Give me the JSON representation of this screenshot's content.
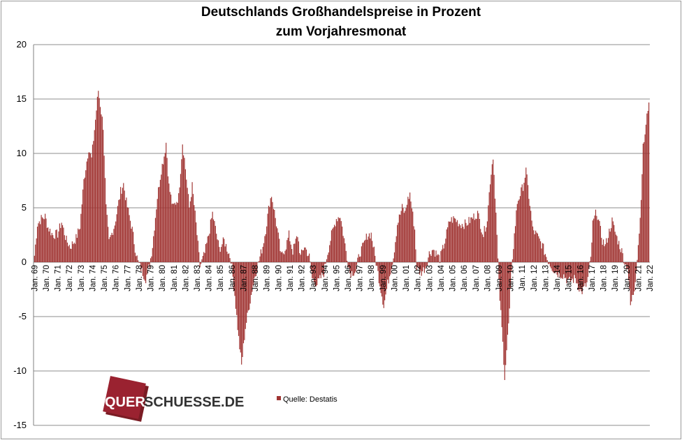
{
  "chart_data": {
    "type": "bar",
    "title_line1": "Deutschlands  Großhandelspreise  in Prozent",
    "title_line2": "zum Vorjahresmonat",
    "xlabel": "",
    "ylabel": "",
    "ylim": [
      -15,
      20
    ],
    "yticks": [
      "20",
      "15",
      "10",
      "5",
      "0",
      "-5",
      "-10",
      "-15"
    ],
    "grid": true,
    "series_color": "#a03432",
    "x_ticks": [
      "Jan. 69",
      "Jan. 70",
      "Jan. 71",
      "Jan. 72",
      "Jan. 73",
      "Jan. 74",
      "Jan. 75",
      "Jan. 76",
      "Jan. 77",
      "Jan. 78",
      "Jan. 79",
      "Jan. 80",
      "Jan. 81",
      "Jan. 82",
      "Jan. 83",
      "Jan. 84",
      "Jan. 85",
      "Jan. 86",
      "Jan. 87",
      "Jan. 88",
      "Jan. 89",
      "Jan. 90",
      "Jan. 91",
      "Jan. 92",
      "Jan. 93",
      "Jan. 94",
      "Jan. 95",
      "Jan. 96",
      "Jan. 97",
      "Jan. 98",
      "Jan. 99",
      "Jan. 00",
      "Jan. 01",
      "Jan. 02",
      "Jan. 03",
      "Jan. 04",
      "Jan. 05",
      "Jan. 06",
      "Jan. 07",
      "Jan. 08",
      "Jan. 09",
      "Jan. 10",
      "Jan. 11",
      "Jan. 12",
      "Jan. 13",
      "Jan. 14",
      "Jan. 15",
      "Jan. 16",
      "Jan. 17",
      "Jan. 18",
      "Jan. 19",
      "Jan. 20",
      "Jan. 21",
      "Jan. 22"
    ],
    "series": [
      {
        "start": "Jan. 69",
        "frequency": "monthly",
        "keypoints": [
          [
            "1969-01",
            0.6
          ],
          [
            "1969-04",
            3.5
          ],
          [
            "1969-08",
            4.0
          ],
          [
            "1969-12",
            4.2
          ],
          [
            "1970-03",
            3.2
          ],
          [
            "1970-08",
            2.5
          ],
          [
            "1971-01",
            2.6
          ],
          [
            "1971-05",
            3.7
          ],
          [
            "1971-10",
            2.0
          ],
          [
            "1972-02",
            1.4
          ],
          [
            "1972-08",
            2.2
          ],
          [
            "1972-12",
            3.3
          ],
          [
            "1973-04",
            7.5
          ],
          [
            "1973-09",
            10.5
          ],
          [
            "1973-12",
            9.5
          ],
          [
            "1974-05",
            14.0
          ],
          [
            "1974-07",
            15.8
          ],
          [
            "1974-12",
            12.5
          ],
          [
            "1975-03",
            5.0
          ],
          [
            "1975-06",
            1.8
          ],
          [
            "1975-12",
            3.5
          ],
          [
            "1976-06",
            6.5
          ],
          [
            "1976-09",
            7.2
          ],
          [
            "1976-12",
            5.5
          ],
          [
            "1977-06",
            3.0
          ],
          [
            "1977-09",
            1.3
          ],
          [
            "1977-12",
            0.0
          ],
          [
            "1978-04",
            -0.8
          ],
          [
            "1978-08",
            -1.5
          ],
          [
            "1978-12",
            -0.2
          ],
          [
            "1979-03",
            1.5
          ],
          [
            "1979-08",
            6.0
          ],
          [
            "1979-12",
            8.5
          ],
          [
            "1980-03",
            9.8
          ],
          [
            "1980-05",
            11.0
          ],
          [
            "1980-08",
            7.0
          ],
          [
            "1980-12",
            5.0
          ],
          [
            "1981-06",
            6.0
          ],
          [
            "1981-10",
            11.0
          ],
          [
            "1981-12",
            9.5
          ],
          [
            "1982-05",
            5.0
          ],
          [
            "1982-08",
            7.0
          ],
          [
            "1982-12",
            3.5
          ],
          [
            "1983-04",
            -0.4
          ],
          [
            "1983-09",
            0.8
          ],
          [
            "1984-01",
            2.5
          ],
          [
            "1984-05",
            4.5
          ],
          [
            "1984-12",
            1.2
          ],
          [
            "1985-05",
            2.0
          ],
          [
            "1985-12",
            0.3
          ],
          [
            "1986-04",
            -3.0
          ],
          [
            "1986-08",
            -7.0
          ],
          [
            "1986-11",
            -9.5
          ],
          [
            "1987-03",
            -6.0
          ],
          [
            "1987-09",
            -3.0
          ],
          [
            "1987-12",
            -1.5
          ],
          [
            "1988-04",
            -0.2
          ],
          [
            "1988-09",
            1.5
          ],
          [
            "1988-12",
            3.0
          ],
          [
            "1989-04",
            5.5
          ],
          [
            "1989-06",
            6.2
          ],
          [
            "1989-12",
            3.0
          ],
          [
            "1990-04",
            0.5
          ],
          [
            "1990-09",
            1.5
          ],
          [
            "1990-12",
            2.5
          ],
          [
            "1991-04",
            1.0
          ],
          [
            "1991-09",
            2.5
          ],
          [
            "1991-12",
            0.5
          ],
          [
            "1992-04",
            1.5
          ],
          [
            "1992-09",
            0.5
          ],
          [
            "1992-12",
            -1.5
          ],
          [
            "1993-05",
            -2.0
          ],
          [
            "1993-12",
            -1.0
          ],
          [
            "1994-03",
            0.5
          ],
          [
            "1994-08",
            2.5
          ],
          [
            "1995-01",
            4.0
          ],
          [
            "1995-05",
            4.3
          ],
          [
            "1995-12",
            0.5
          ],
          [
            "1996-03",
            -1.0
          ],
          [
            "1996-09",
            -0.8
          ],
          [
            "1997-01",
            0.8
          ],
          [
            "1997-05",
            1.5
          ],
          [
            "1997-09",
            2.5
          ],
          [
            "1998-01",
            2.6
          ],
          [
            "1998-05",
            0.5
          ],
          [
            "1998-10",
            -2.0
          ],
          [
            "1999-02",
            -4.0
          ],
          [
            "1999-06",
            -2.0
          ],
          [
            "1999-12",
            0.5
          ],
          [
            "2000-04",
            3.5
          ],
          [
            "2000-09",
            5.0
          ],
          [
            "2000-12",
            4.5
          ],
          [
            "2001-02",
            5.5
          ],
          [
            "2001-05",
            6.3
          ],
          [
            "2001-10",
            3.0
          ],
          [
            "2001-12",
            -0.5
          ],
          [
            "2002-04",
            -1.0
          ],
          [
            "2002-09",
            -0.5
          ],
          [
            "2003-01",
            0.8
          ],
          [
            "2003-05",
            1.2
          ],
          [
            "2003-12",
            0.3
          ],
          [
            "2004-04",
            1.5
          ],
          [
            "2004-10",
            3.8
          ],
          [
            "2005-03",
            4.0
          ],
          [
            "2005-09",
            3.5
          ],
          [
            "2006-03",
            3.5
          ],
          [
            "2006-09",
            4.0
          ],
          [
            "2007-03",
            4.5
          ],
          [
            "2007-09",
            2.5
          ],
          [
            "2008-01",
            4.0
          ],
          [
            "2008-04",
            7.5
          ],
          [
            "2008-07",
            9.8
          ],
          [
            "2008-10",
            4.5
          ],
          [
            "2009-01",
            -2.0
          ],
          [
            "2009-05",
            -7.5
          ],
          [
            "2009-07",
            -10.5
          ],
          [
            "2009-12",
            -4.5
          ],
          [
            "2010-03",
            0.5
          ],
          [
            "2010-08",
            5.5
          ],
          [
            "2011-02",
            7.0
          ],
          [
            "2011-05",
            8.4
          ],
          [
            "2011-12",
            3.0
          ],
          [
            "2012-04",
            2.5
          ],
          [
            "2012-10",
            1.5
          ],
          [
            "2013-03",
            0.3
          ],
          [
            "2013-08",
            -0.5
          ],
          [
            "2014-01",
            -1.0
          ],
          [
            "2014-08",
            -1.2
          ],
          [
            "2015-01",
            -1.8
          ],
          [
            "2015-08",
            -1.5
          ],
          [
            "2016-02",
            -2.8
          ],
          [
            "2016-08",
            -2.0
          ],
          [
            "2016-12",
            0.3
          ],
          [
            "2017-02",
            3.5
          ],
          [
            "2017-06",
            4.7
          ],
          [
            "2017-12",
            2.0
          ],
          [
            "2018-03",
            1.5
          ],
          [
            "2018-10",
            3.8
          ],
          [
            "2019-02",
            2.5
          ],
          [
            "2019-08",
            1.0
          ],
          [
            "2019-12",
            -0.3
          ],
          [
            "2020-02",
            -0.4
          ],
          [
            "2020-05",
            -4.0
          ],
          [
            "2020-09",
            -2.5
          ],
          [
            "2020-12",
            0.5
          ],
          [
            "2021-03",
            4.0
          ],
          [
            "2021-06",
            10.5
          ],
          [
            "2021-09",
            12.5
          ],
          [
            "2021-12",
            15.0
          ]
        ]
      }
    ],
    "legend": {
      "label": "Quelle: Destatis",
      "placement": "bottom-left-inside"
    },
    "watermark": {
      "text_part1": "QUER",
      "text_part2": "SCHUESSE.DE"
    }
  }
}
